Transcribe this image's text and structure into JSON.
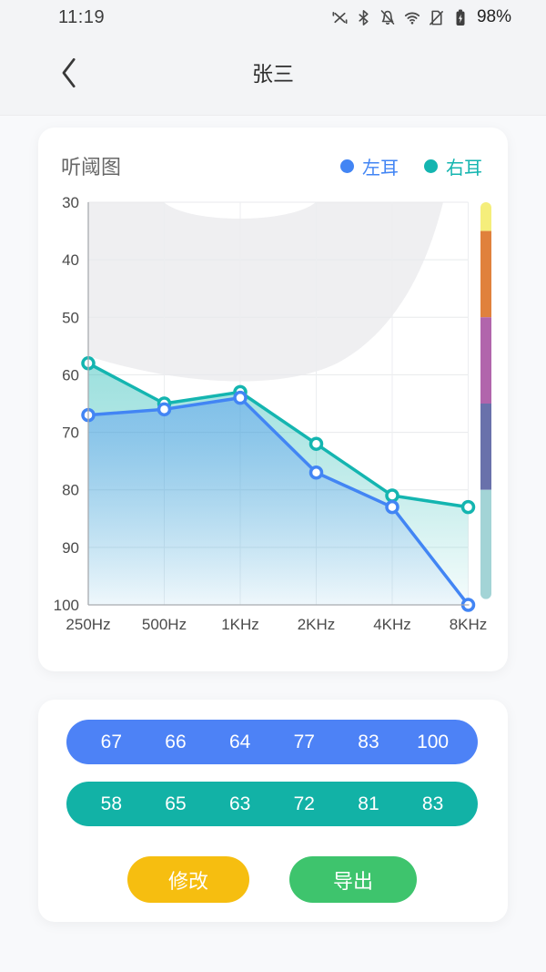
{
  "status_bar": {
    "time": "11:19",
    "battery_percent": "98%",
    "icons": [
      "mute-icon",
      "bluetooth-icon",
      "notifications-off-icon",
      "wifi-icon",
      "no-sim-icon",
      "battery-charging-icon"
    ]
  },
  "header": {
    "title": "张三"
  },
  "audiogram_card": {
    "title": "听阈图"
  },
  "chart_data": {
    "type": "line",
    "title": "听阈图",
    "x_labels": [
      "250Hz",
      "500Hz",
      "1KHz",
      "2KHz",
      "4KHz",
      "8KHz"
    ],
    "y_ticks": [
      30,
      40,
      50,
      60,
      70,
      80,
      90,
      100
    ],
    "ylim": [
      30,
      100
    ],
    "y_axis_inverted": true,
    "grid": true,
    "legend_position": "top-right",
    "series": [
      {
        "name": "左耳",
        "color": "#4285f4",
        "values": [
          67,
          66,
          64,
          77,
          83,
          100
        ]
      },
      {
        "name": "右耳",
        "color": "#14b5b0",
        "values": [
          58,
          65,
          63,
          72,
          81,
          83
        ]
      }
    ],
    "colorbar_segments": [
      {
        "from": 30,
        "to": 35,
        "color": "#f5ee7b"
      },
      {
        "from": 35,
        "to": 50,
        "color": "#e0813c"
      },
      {
        "from": 50,
        "to": 65,
        "color": "#b165ac"
      },
      {
        "from": 65,
        "to": 80,
        "color": "#6971ab"
      },
      {
        "from": 80,
        "to": 99,
        "color": "#a3d4d6"
      }
    ]
  },
  "values_card": {
    "left_pill_color": "#4d82f6",
    "right_pill_color": "#12b2a6",
    "buttons": [
      {
        "label": "修改",
        "color": "#f6be10"
      },
      {
        "label": "导出",
        "color": "#3ec46d"
      }
    ]
  }
}
